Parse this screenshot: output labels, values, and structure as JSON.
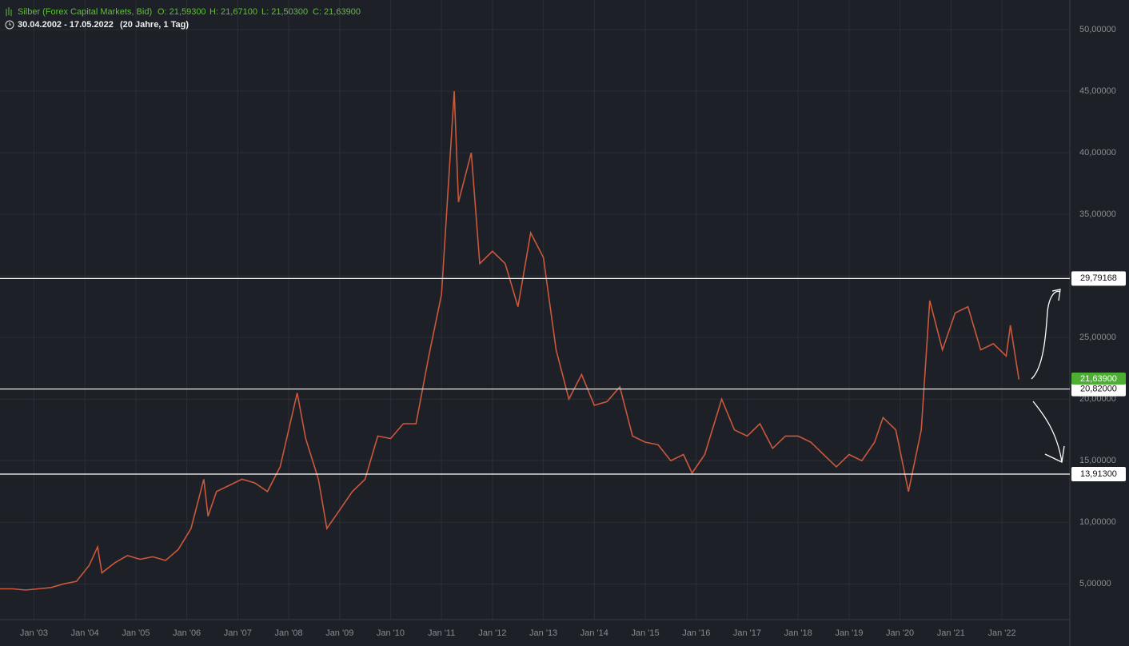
{
  "chart_data": {
    "type": "line",
    "title": "Silber (Forex Capital Markets, Bid)",
    "open": "O: 21,59300",
    "high": "H: 21,67100",
    "low": "L: 21,50300",
    "close": "C: 21,63900",
    "period": "30.04.2002 - 17.05.2022",
    "duration": "(20 Jahre, 1 Tag)",
    "grid": true,
    "xlim": [
      "2002-05",
      "2023-05"
    ],
    "ylim": [
      2.1,
      52.4
    ],
    "xticks": [
      {
        "value": "2003-01",
        "label": "Jan '03"
      },
      {
        "value": "2004-01",
        "label": "Jan '04"
      },
      {
        "value": "2005-01",
        "label": "Jan '05"
      },
      {
        "value": "2006-01",
        "label": "Jan '06"
      },
      {
        "value": "2007-01",
        "label": "Jan '07"
      },
      {
        "value": "2008-01",
        "label": "Jan '08"
      },
      {
        "value": "2009-01",
        "label": "Jan '09"
      },
      {
        "value": "2010-01",
        "label": "Jan '10"
      },
      {
        "value": "2011-01",
        "label": "Jan '11"
      },
      {
        "value": "2012-01",
        "label": "Jan '12"
      },
      {
        "value": "2013-01",
        "label": "Jan '13"
      },
      {
        "value": "2014-01",
        "label": "Jan '14"
      },
      {
        "value": "2015-01",
        "label": "Jan '15"
      },
      {
        "value": "2016-01",
        "label": "Jan '16"
      },
      {
        "value": "2017-01",
        "label": "Jan '17"
      },
      {
        "value": "2018-01",
        "label": "Jan '18"
      },
      {
        "value": "2019-01",
        "label": "Jan '19"
      },
      {
        "value": "2020-01",
        "label": "Jan '20"
      },
      {
        "value": "2021-01",
        "label": "Jan '21"
      },
      {
        "value": "2022-01",
        "label": "Jan '22"
      }
    ],
    "yticks": [
      {
        "value": 5,
        "label": "5,00000"
      },
      {
        "value": 10,
        "label": "10,00000"
      },
      {
        "value": 15,
        "label": "15,00000"
      },
      {
        "value": 20,
        "label": "20,00000"
      },
      {
        "value": 25,
        "label": "25,00000"
      },
      {
        "value": 30,
        "label": "30,00000"
      },
      {
        "value": 35,
        "label": "35,00000"
      },
      {
        "value": 40,
        "label": "40,00000"
      },
      {
        "value": 45,
        "label": "45,00000"
      },
      {
        "value": 50,
        "label": "50,00000"
      }
    ],
    "levels": [
      {
        "value": 29.79168,
        "label": "29,79168"
      },
      {
        "value": 20.82,
        "label": "20,82000"
      },
      {
        "value": 13.913,
        "label": "13,91300"
      }
    ],
    "last_price": {
      "value": 21.639,
      "label": "21,63900"
    },
    "series": [
      {
        "name": "Silber",
        "color": "#c9583c",
        "x": [
          "2002-05",
          "2002-08",
          "2002-11",
          "2003-02",
          "2003-05",
          "2003-08",
          "2003-11",
          "2004-02",
          "2004-04",
          "2004-05",
          "2004-08",
          "2004-11",
          "2005-02",
          "2005-05",
          "2005-08",
          "2005-11",
          "2006-02",
          "2006-05",
          "2006-06",
          "2006-08",
          "2006-11",
          "2007-02",
          "2007-05",
          "2007-08",
          "2007-11",
          "2008-03",
          "2008-05",
          "2008-08",
          "2008-10",
          "2009-01",
          "2009-04",
          "2009-07",
          "2009-10",
          "2010-01",
          "2010-04",
          "2010-07",
          "2010-10",
          "2011-01",
          "2011-04",
          "2011-05",
          "2011-08",
          "2011-10",
          "2012-01",
          "2012-04",
          "2012-07",
          "2012-10",
          "2013-01",
          "2013-04",
          "2013-07",
          "2013-10",
          "2014-01",
          "2014-04",
          "2014-07",
          "2014-10",
          "2015-01",
          "2015-04",
          "2015-07",
          "2015-10",
          "2015-12",
          "2016-03",
          "2016-07",
          "2016-10",
          "2017-01",
          "2017-04",
          "2017-07",
          "2017-10",
          "2018-01",
          "2018-04",
          "2018-07",
          "2018-10",
          "2019-01",
          "2019-04",
          "2019-07",
          "2019-09",
          "2019-12",
          "2020-03",
          "2020-06",
          "2020-08",
          "2020-11",
          "2021-02",
          "2021-05",
          "2021-08",
          "2021-11",
          "2022-02",
          "2022-03",
          "2022-05"
        ],
        "values": [
          4.6,
          4.6,
          4.5,
          4.6,
          4.7,
          5.0,
          5.2,
          6.5,
          8.0,
          5.9,
          6.7,
          7.3,
          7.0,
          7.2,
          6.9,
          7.8,
          9.5,
          13.5,
          10.5,
          12.5,
          13.0,
          13.5,
          13.2,
          12.5,
          14.5,
          20.5,
          16.8,
          13.5,
          9.5,
          11.0,
          12.5,
          13.5,
          17.0,
          16.8,
          18.0,
          18.0,
          23.5,
          28.5,
          45.0,
          36.0,
          40.0,
          31.0,
          32.0,
          31.0,
          27.5,
          33.5,
          31.5,
          24.0,
          20.0,
          22.0,
          19.5,
          19.8,
          21.0,
          17.0,
          16.5,
          16.3,
          15.0,
          15.5,
          14.0,
          15.5,
          20.0,
          17.5,
          17.0,
          18.0,
          16.0,
          17.0,
          17.0,
          16.5,
          15.5,
          14.5,
          15.5,
          15.0,
          16.5,
          18.5,
          17.5,
          12.5,
          17.5,
          28.0,
          24.0,
          27.0,
          27.5,
          24.0,
          24.5,
          23.5,
          26.0,
          21.6
        ]
      }
    ]
  }
}
